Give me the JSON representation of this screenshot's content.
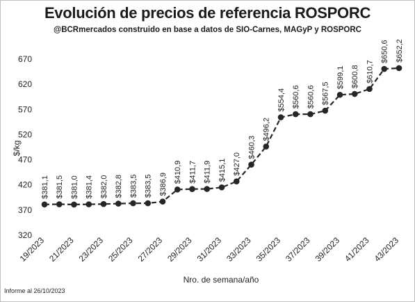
{
  "title": "Evolución de precios de referencia ROSPORC",
  "subtitle": "@BCRmercados construido en base a datos de SIO-Carnes, MAGyP y ROSPORC",
  "footnote": "Informe al 26/10/2023",
  "chart_data": {
    "type": "line",
    "title": "Evolución de precios de referencia ROSPORC",
    "xlabel": "Nro. de semana/año",
    "ylabel": "$/kg",
    "ylim": [
      320,
      690
    ],
    "yticks": [
      320,
      370,
      420,
      470,
      520,
      570,
      620,
      670
    ],
    "grid": false,
    "legend": "none",
    "line_style": "dashed",
    "marker": "circle",
    "color": "#262626",
    "x": [
      "19/2023",
      "20/2023",
      "21/2023",
      "22/2023",
      "23/2023",
      "24/2023",
      "25/2023",
      "26/2023",
      "27/2023",
      "28/2023",
      "29/2023",
      "30/2023",
      "31/2023",
      "32/2023",
      "33/2023",
      "34/2023",
      "35/2023",
      "36/2023",
      "37/2023",
      "38/2023",
      "39/2023",
      "40/2023",
      "41/2023",
      "42/2023",
      "43/2023"
    ],
    "xtick_labels": [
      "19/2023",
      "21/2023",
      "23/2023",
      "25/2023",
      "27/2023",
      "29/2023",
      "31/2023",
      "33/2023",
      "35/2023",
      "37/2023",
      "39/2023",
      "41/2023",
      "43/2023"
    ],
    "values": [
      381.1,
      381.5,
      381.0,
      381.4,
      382.0,
      382.8,
      383.5,
      383.5,
      386.9,
      410.9,
      411.7,
      411.9,
      415.1,
      427.0,
      460.3,
      496.2,
      554.4,
      560.6,
      560.6,
      567.5,
      599.1,
      600.8,
      610.7,
      650.6,
      652.2
    ],
    "data_labels": [
      "$381,1",
      "$381,5",
      "$381,0",
      "$381,4",
      "$382,0",
      "$382,8",
      "$383,5",
      "$383,5",
      "$386,9",
      "$410,9",
      "$411,7",
      "$411,9",
      "$415,1",
      "$427,0",
      "$460,3",
      "$496,2",
      "$554,4",
      "$560,6",
      "$560,6",
      "$567,5",
      "$599,1",
      "$600,8",
      "$610,7",
      "$650,6",
      "$652,2"
    ]
  }
}
